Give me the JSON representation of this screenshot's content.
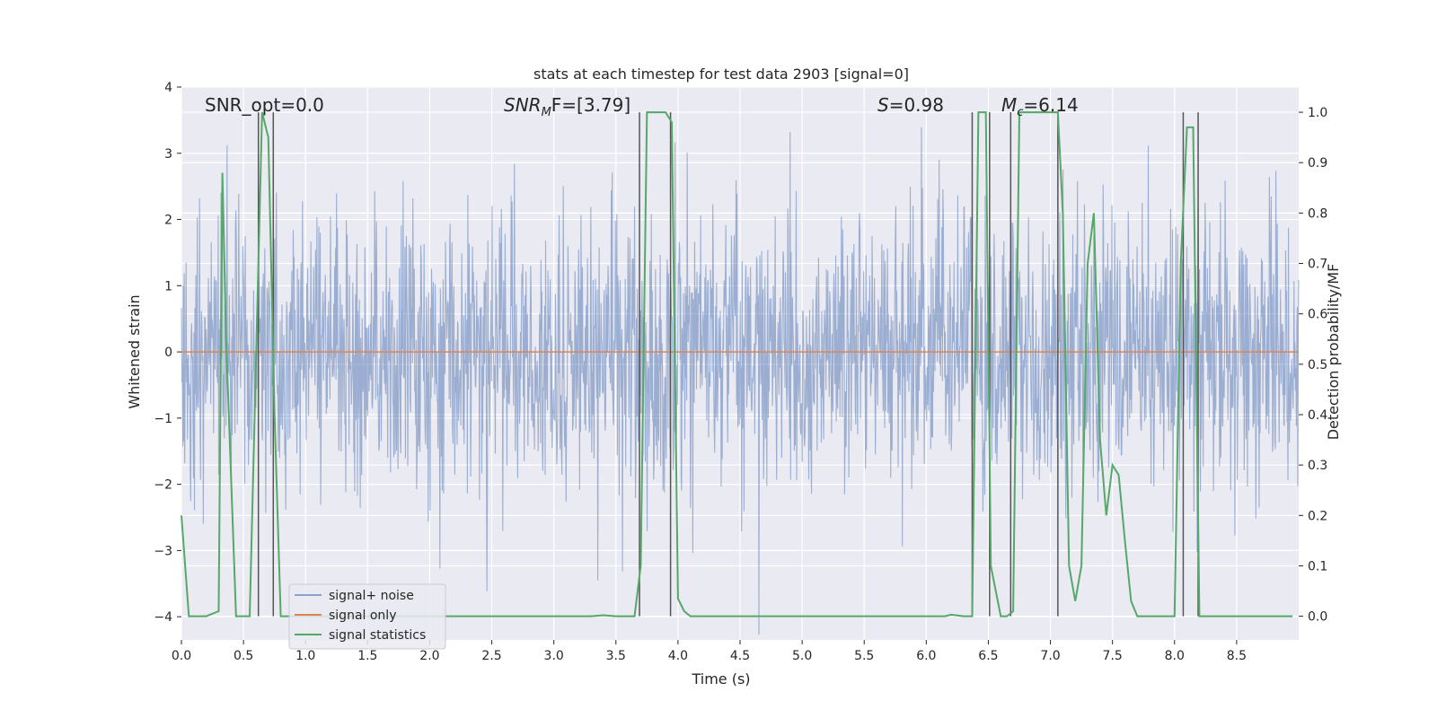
{
  "chart_data": {
    "type": "line",
    "title": "stats at each timestep for test data 2903 [signal=0]",
    "xlabel": "Time (s)",
    "ylabel_left": "Whitened strain",
    "ylabel_right": "Detection probability/MF",
    "xlim": [
      0.0,
      9.0
    ],
    "ylim_left": [
      -4.35,
      4.0
    ],
    "ylim_right": [
      -0.047,
      1.05
    ],
    "x_ticks": [
      "0.0",
      "0.5",
      "1.0",
      "1.5",
      "2.0",
      "2.5",
      "3.0",
      "3.5",
      "4.0",
      "4.5",
      "5.0",
      "5.5",
      "6.0",
      "6.5",
      "7.0",
      "7.5",
      "8.0",
      "8.5"
    ],
    "y_ticks_left": [
      "−4",
      "−3",
      "−2",
      "−1",
      "0",
      "1",
      "2",
      "3",
      "4"
    ],
    "y_ticks_right": [
      "0.0",
      "0.1",
      "0.2",
      "0.3",
      "0.4",
      "0.5",
      "0.6",
      "0.7",
      "0.8",
      "0.9",
      "1.0"
    ],
    "grid": true,
    "legend_position": "lower-left",
    "legend": [
      {
        "label": "signal+ noise",
        "color": "#4c72b0"
      },
      {
        "label": "signal only",
        "color": "#dd8452"
      },
      {
        "label": "signal statistics",
        "color": "#55a868"
      }
    ],
    "annotations": {
      "snr_opt": "SNR_opt=0.0",
      "snr_mf_main": "SNR",
      "snr_mf_sub": "M",
      "snr_mf_rest": "F=[3.79]",
      "s_main": "S",
      "s_rest": "=0.98",
      "mc_main": "M",
      "mc_sub": "c",
      "mc_rest": "=6.14"
    },
    "series": [
      {
        "name": "signal+ noise",
        "axis": "left",
        "color": "#4c72b0",
        "noise_envelope": {
          "sigma": 1.0,
          "x_start": 0.0,
          "x_end": 9.0
        }
      },
      {
        "name": "signal only",
        "axis": "left",
        "color": "#dd8452",
        "y_constant": 0.0
      },
      {
        "name": "signal statistics",
        "axis": "right",
        "color": "#55a868",
        "x": [
          0.0,
          0.03,
          0.06,
          0.09,
          0.2,
          0.3,
          0.33,
          0.36,
          0.44,
          0.55,
          0.6,
          0.65,
          0.7,
          0.75,
          0.8,
          0.85,
          1.0,
          1.5,
          2.0,
          2.5,
          3.0,
          3.3,
          3.4,
          3.5,
          3.65,
          3.7,
          3.75,
          3.85,
          3.9,
          3.95,
          4.0,
          4.05,
          4.1,
          5.0,
          6.0,
          6.15,
          6.2,
          6.3,
          6.37,
          6.42,
          6.48,
          6.52,
          6.6,
          6.65,
          6.7,
          6.75,
          6.8,
          6.9,
          7.0,
          7.06,
          7.1,
          7.15,
          7.2,
          7.25,
          7.3,
          7.35,
          7.4,
          7.45,
          7.5,
          7.55,
          7.6,
          7.65,
          7.7,
          7.75,
          7.85,
          8.0,
          8.05,
          8.1,
          8.15,
          8.2,
          8.25,
          8.3,
          8.5,
          8.8,
          8.95
        ],
        "y": [
          0.2,
          0.1,
          0.0,
          0.0,
          0.0,
          0.01,
          0.88,
          0.55,
          0.0,
          0.0,
          0.5,
          1.0,
          0.95,
          0.4,
          0.0,
          0.0,
          0.0,
          0.0,
          0.0,
          0.0,
          0.0,
          0.0,
          0.002,
          0.0,
          0.0,
          0.1,
          1.0,
          1.0,
          1.0,
          0.98,
          0.035,
          0.01,
          0.0,
          0.0,
          0.0,
          0.0,
          0.003,
          0.0,
          0.0,
          1.0,
          1.0,
          0.1,
          0.0,
          0.0,
          0.01,
          1.0,
          1.0,
          1.0,
          1.0,
          1.0,
          0.8,
          0.1,
          0.03,
          0.1,
          0.7,
          0.8,
          0.35,
          0.2,
          0.3,
          0.28,
          0.15,
          0.03,
          0.0,
          0.0,
          0.0,
          0.0,
          0.7,
          0.97,
          0.97,
          0.0,
          0.0,
          0.0,
          0.0,
          0.0,
          0.0
        ]
      }
    ],
    "vertical_lines_x": [
      0.62,
      0.74,
      3.69,
      3.94,
      6.37,
      6.51,
      6.68,
      7.06,
      8.07,
      8.19
    ]
  }
}
